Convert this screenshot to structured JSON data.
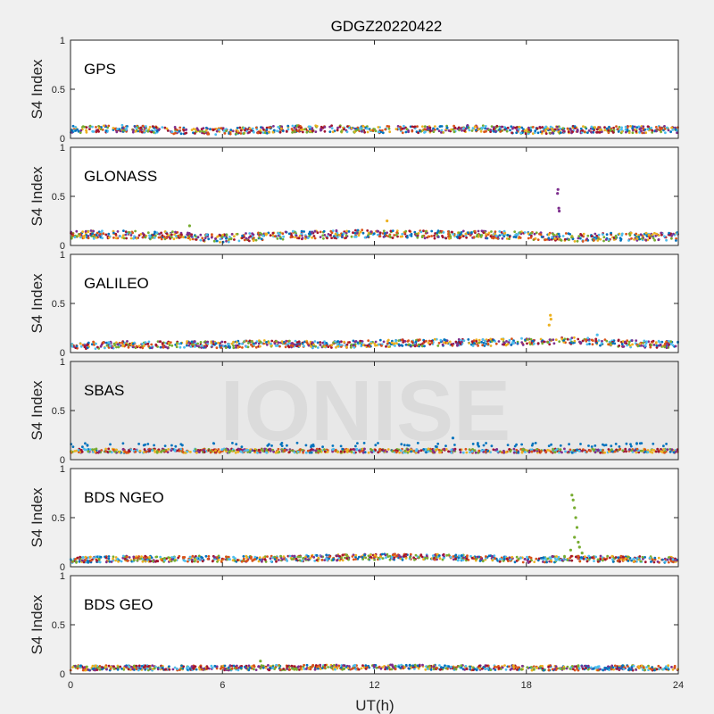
{
  "chart_data": {
    "type": "scatter",
    "title": "GDGZ20220422",
    "xlabel": "UT(h)",
    "ylabel": "S4 Index",
    "xlim": [
      0,
      24
    ],
    "ylim": [
      0,
      1
    ],
    "xticks": [
      "0",
      "6",
      "12",
      "18",
      "24"
    ],
    "yticks": [
      "0",
      "0.5",
      "1"
    ],
    "watermark": "IONISE",
    "series_colors": [
      "#0072bd",
      "#d95319",
      "#edb120",
      "#7e2f8e",
      "#77ac30",
      "#4dbeee",
      "#a2142f"
    ],
    "panels": [
      {
        "label": "GPS",
        "background": "#ffffff",
        "baseline": [
          [
            0,
            0.09
          ],
          [
            2,
            0.1
          ],
          [
            4,
            0.08
          ],
          [
            6,
            0.07
          ],
          [
            8,
            0.09
          ],
          [
            10,
            0.1
          ],
          [
            12,
            0.09
          ],
          [
            14,
            0.09
          ],
          [
            16,
            0.1
          ],
          [
            18,
            0.08
          ],
          [
            20,
            0.09
          ],
          [
            22,
            0.09
          ],
          [
            24,
            0.09
          ]
        ],
        "spread": 0.035,
        "outliers": []
      },
      {
        "label": "GLONASS",
        "background": "#ffffff",
        "baseline": [
          [
            0,
            0.11
          ],
          [
            2,
            0.11
          ],
          [
            4,
            0.1
          ],
          [
            6,
            0.07
          ],
          [
            8,
            0.1
          ],
          [
            10,
            0.11
          ],
          [
            12,
            0.12
          ],
          [
            14,
            0.11
          ],
          [
            16,
            0.11
          ],
          [
            18,
            0.1
          ],
          [
            20,
            0.08
          ],
          [
            22,
            0.09
          ],
          [
            24,
            0.09
          ]
        ],
        "spread": 0.04,
        "outliers": [
          {
            "x": 19.25,
            "y": 0.57,
            "series": 3
          },
          {
            "x": 19.23,
            "y": 0.53,
            "series": 3
          },
          {
            "x": 19.28,
            "y": 0.38,
            "series": 3
          },
          {
            "x": 19.3,
            "y": 0.35,
            "series": 3
          },
          {
            "x": 12.5,
            "y": 0.25,
            "series": 2
          },
          {
            "x": 4.7,
            "y": 0.2,
            "series": 4
          }
        ]
      },
      {
        "label": "GALILEO",
        "background": "#ffffff",
        "baseline": [
          [
            0,
            0.07
          ],
          [
            2,
            0.08
          ],
          [
            4,
            0.08
          ],
          [
            6,
            0.08
          ],
          [
            8,
            0.09
          ],
          [
            10,
            0.08
          ],
          [
            12,
            0.09
          ],
          [
            14,
            0.1
          ],
          [
            16,
            0.1
          ],
          [
            18,
            0.11
          ],
          [
            20,
            0.12
          ],
          [
            22,
            0.09
          ],
          [
            24,
            0.08
          ]
        ],
        "spread": 0.035,
        "outliers": [
          {
            "x": 18.95,
            "y": 0.38,
            "series": 2
          },
          {
            "x": 18.97,
            "y": 0.34,
            "series": 2
          },
          {
            "x": 18.9,
            "y": 0.28,
            "series": 2
          },
          {
            "x": 20.8,
            "y": 0.18,
            "series": 5
          }
        ]
      },
      {
        "label": "SBAS",
        "background": "#e8e8e8",
        "baseline": [
          [
            0,
            0.09
          ],
          [
            6,
            0.09
          ],
          [
            12,
            0.09
          ],
          [
            18,
            0.09
          ],
          [
            24,
            0.09
          ]
        ],
        "spread": 0.02,
        "upper_band": 0.15,
        "outliers": [
          {
            "x": 15.1,
            "y": 0.22,
            "series": 0
          }
        ]
      },
      {
        "label": "BDS NGEO",
        "background": "#ffffff",
        "baseline": [
          [
            0,
            0.07
          ],
          [
            2,
            0.08
          ],
          [
            4,
            0.08
          ],
          [
            6,
            0.08
          ],
          [
            8,
            0.08
          ],
          [
            10,
            0.09
          ],
          [
            12,
            0.1
          ],
          [
            14,
            0.1
          ],
          [
            16,
            0.09
          ],
          [
            18,
            0.07
          ],
          [
            20,
            0.08
          ],
          [
            22,
            0.08
          ],
          [
            24,
            0.07
          ]
        ],
        "spread": 0.03,
        "outliers": [
          {
            "x": 19.8,
            "y": 0.73,
            "series": 4
          },
          {
            "x": 19.85,
            "y": 0.68,
            "series": 4
          },
          {
            "x": 19.9,
            "y": 0.6,
            "series": 4
          },
          {
            "x": 19.95,
            "y": 0.5,
            "series": 4
          },
          {
            "x": 20.0,
            "y": 0.4,
            "series": 4
          },
          {
            "x": 19.9,
            "y": 0.3,
            "series": 4
          },
          {
            "x": 20.05,
            "y": 0.25,
            "series": 4
          },
          {
            "x": 20.1,
            "y": 0.2,
            "series": 4
          },
          {
            "x": 19.75,
            "y": 0.17,
            "series": 4
          },
          {
            "x": 20.2,
            "y": 0.14,
            "series": 4
          }
        ]
      },
      {
        "label": "BDS GEO",
        "background": "#ffffff",
        "baseline": [
          [
            0,
            0.06
          ],
          [
            6,
            0.06
          ],
          [
            12,
            0.07
          ],
          [
            18,
            0.06
          ],
          [
            24,
            0.06
          ]
        ],
        "spread": 0.025,
        "outliers": [
          {
            "x": 7.5,
            "y": 0.13,
            "series": 4
          }
        ]
      }
    ]
  }
}
